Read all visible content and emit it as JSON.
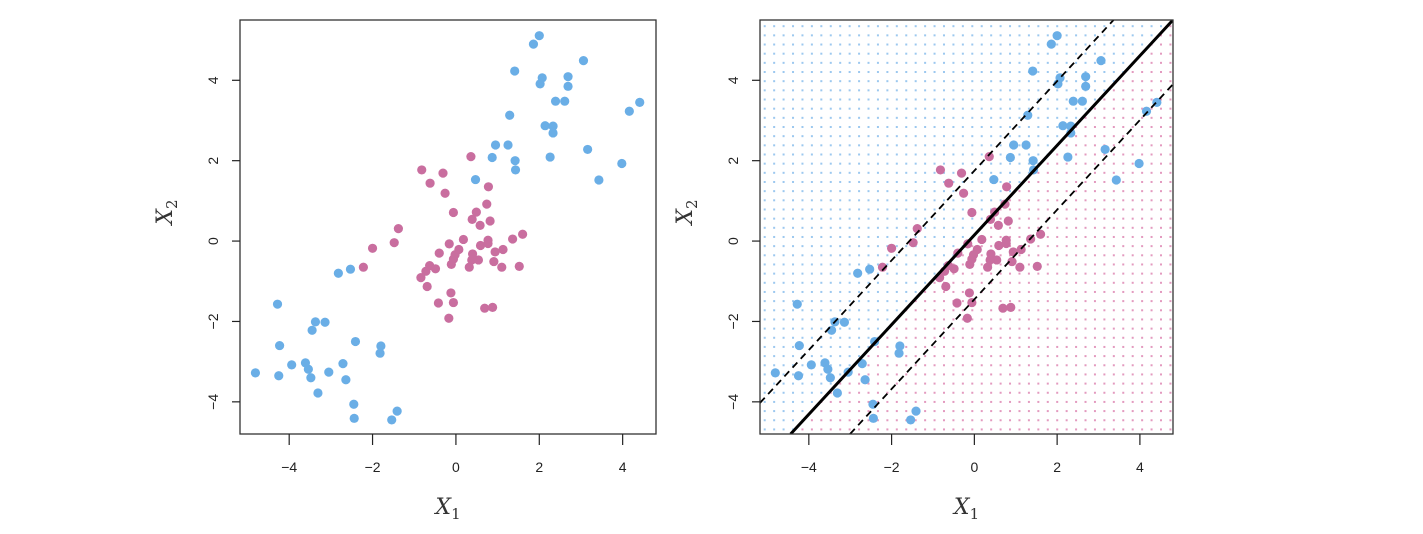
{
  "chart_data": [
    {
      "type": "scatter",
      "panel": "left",
      "xlabel": "X",
      "xlabel_sub": "1",
      "ylabel": "X",
      "ylabel_sub": "2",
      "xlim": [
        -5.18,
        4.8
      ],
      "ylim": [
        -4.8,
        5.5
      ],
      "xticks": [
        -4,
        -2,
        0,
        2,
        4
      ],
      "yticks": [
        -4,
        -2,
        0,
        2,
        4
      ],
      "xtick_labels": [
        "−4",
        "−2",
        "0",
        "2",
        "4"
      ],
      "ytick_labels": [
        "−4",
        "−2",
        "0",
        "2",
        "4"
      ],
      "grid": false
    },
    {
      "type": "scatter",
      "panel": "right",
      "xlabel": "X",
      "xlabel_sub": "1",
      "ylabel": "X",
      "ylabel_sub": "2",
      "xlim": [
        -5.18,
        4.8
      ],
      "ylim": [
        -4.8,
        5.5
      ],
      "xticks": [
        -4,
        -2,
        0,
        2,
        4
      ],
      "yticks": [
        -4,
        -2,
        0,
        2,
        4
      ],
      "xtick_labels": [
        "−4",
        "−2",
        "0",
        "2",
        "4"
      ],
      "ytick_labels": [
        "−4",
        "−2",
        "0",
        "2",
        "4"
      ],
      "grid": false,
      "decision_boundary": {
        "slope": 1.115,
        "intercept": 0.15,
        "margin": 1.6
      },
      "background_grid_step": 0.228
    }
  ],
  "colors": {
    "blue": "#6aaee6",
    "pink": "#c96e9f",
    "blue_bg": "#9cc8ef",
    "pink_bg": "#e39abf",
    "line": "#000000"
  },
  "series": [
    {
      "name": "blue",
      "points": [
        [
          2.0,
          5.11
        ],
        [
          1.86,
          4.9
        ],
        [
          3.06,
          4.49
        ],
        [
          1.41,
          4.23
        ],
        [
          2.07,
          4.06
        ],
        [
          2.02,
          3.91
        ],
        [
          2.69,
          4.09
        ],
        [
          2.69,
          3.85
        ],
        [
          2.39,
          3.48
        ],
        [
          2.61,
          3.48
        ],
        [
          4.41,
          3.45
        ],
        [
          4.16,
          3.23
        ],
        [
          1.29,
          3.13
        ],
        [
          2.14,
          2.87
        ],
        [
          2.33,
          2.86
        ],
        [
          2.33,
          2.69
        ],
        [
          0.95,
          2.39
        ],
        [
          1.25,
          2.39
        ],
        [
          0.87,
          2.08
        ],
        [
          1.42,
          2.0
        ],
        [
          1.43,
          1.77
        ],
        [
          2.26,
          2.09
        ],
        [
          3.16,
          2.28
        ],
        [
          3.98,
          1.93
        ],
        [
          3.43,
          1.52
        ],
        [
          0.47,
          1.53
        ],
        [
          -2.82,
          -0.8
        ],
        [
          -2.53,
          -0.7
        ],
        [
          -4.28,
          -1.57
        ],
        [
          -3.37,
          -2.01
        ],
        [
          -3.14,
          -2.02
        ],
        [
          -3.45,
          -2.22
        ],
        [
          -4.23,
          -2.6
        ],
        [
          -2.41,
          -2.5
        ],
        [
          -1.8,
          -2.61
        ],
        [
          -1.82,
          -2.79
        ],
        [
          -4.81,
          -3.28
        ],
        [
          -4.25,
          -3.35
        ],
        [
          -3.94,
          -3.08
        ],
        [
          -3.61,
          -3.03
        ],
        [
          -3.54,
          -3.19
        ],
        [
          -3.48,
          -3.4
        ],
        [
          -3.05,
          -3.26
        ],
        [
          -2.71,
          -3.05
        ],
        [
          -2.64,
          -3.45
        ],
        [
          -3.31,
          -3.78
        ],
        [
          -2.45,
          -4.06
        ],
        [
          -2.44,
          -4.41
        ],
        [
          -1.41,
          -4.23
        ],
        [
          -1.54,
          -4.45
        ]
      ]
    },
    {
      "name": "pink",
      "points": [
        [
          0.36,
          2.1
        ],
        [
          -0.82,
          1.77
        ],
        [
          -0.31,
          1.69
        ],
        [
          -0.62,
          1.44
        ],
        [
          0.78,
          1.35
        ],
        [
          -0.26,
          1.19
        ],
        [
          0.74,
          0.92
        ],
        [
          -0.06,
          0.71
        ],
        [
          0.49,
          0.72
        ],
        [
          0.39,
          0.54
        ],
        [
          0.82,
          0.5
        ],
        [
          0.58,
          0.39
        ],
        [
          -1.38,
          0.31
        ],
        [
          1.6,
          0.17
        ],
        [
          1.36,
          0.05
        ],
        [
          -1.48,
          -0.04
        ],
        [
          -2.0,
          -0.18
        ],
        [
          0.18,
          0.04
        ],
        [
          -0.16,
          -0.07
        ],
        [
          0.77,
          0.02
        ],
        [
          0.59,
          -0.11
        ],
        [
          0.77,
          -0.06
        ],
        [
          0.07,
          -0.21
        ],
        [
          1.13,
          -0.21
        ],
        [
          -0.4,
          -0.3
        ],
        [
          0.94,
          -0.27
        ],
        [
          0.4,
          -0.32
        ],
        [
          -0.02,
          -0.34
        ],
        [
          -0.06,
          -0.45
        ],
        [
          0.54,
          -0.47
        ],
        [
          0.38,
          -0.47
        ],
        [
          0.91,
          -0.51
        ],
        [
          -0.11,
          -0.58
        ],
        [
          -0.63,
          -0.61
        ],
        [
          -0.49,
          -0.69
        ],
        [
          0.32,
          -0.65
        ],
        [
          1.1,
          -0.65
        ],
        [
          1.52,
          -0.63
        ],
        [
          -0.72,
          -0.75
        ],
        [
          -2.22,
          -0.65
        ],
        [
          -0.84,
          -0.91
        ],
        [
          -0.69,
          -1.13
        ],
        [
          -0.12,
          -1.29
        ],
        [
          -0.06,
          -1.53
        ],
        [
          -0.42,
          -1.54
        ],
        [
          0.69,
          -1.67
        ],
        [
          0.88,
          -1.65
        ],
        [
          -0.17,
          -1.92
        ]
      ]
    }
  ]
}
